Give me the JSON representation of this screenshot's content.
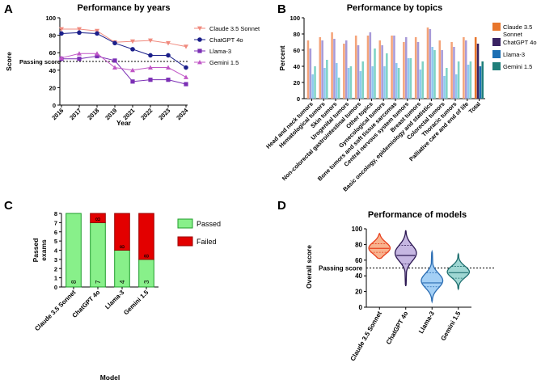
{
  "colors": {
    "claude": "#f08a7e",
    "chatgpt": "#1b1f8a",
    "llama": "#7b2fb5",
    "gemini": "#c056c6",
    "claude_bar": "#f4a47a",
    "chatgpt_bar": "#a89ad8",
    "llama_bar": "#8fc9f0",
    "gemini_bar": "#7fd3c5",
    "total_claude": "#e8762c",
    "total_chatgpt": "#3a2363",
    "total_llama": "#1c6fb3",
    "total_gemini": "#1f7f7a",
    "passed": "#88f08a",
    "passed_border": "#1f9d2b",
    "failed": "#e30000",
    "failed_border": "#9a0000",
    "violin_claude": "#f8b38f",
    "violin_claude_edge": "#e8401d",
    "violin_chatgpt": "#c6b7e2",
    "violin_chatgpt_edge": "#2c1852",
    "violin_llama": "#a3cff5",
    "violin_llama_edge": "#2b6db3",
    "violin_gemini": "#9fd7d3",
    "violin_gemini_edge": "#1f6f6f"
  },
  "panel_labels": [
    "A",
    "B",
    "C",
    "D"
  ],
  "chart_data": [
    {
      "id": "A",
      "type": "line",
      "title": "Performance by years",
      "xlabel": "Year",
      "ylabel": "Score",
      "x": [
        "2016",
        "2017",
        "2018",
        "2019",
        "2021",
        "2022",
        "2023",
        "2024"
      ],
      "ylim": [
        0,
        100
      ],
      "yticks": [
        "0",
        "20",
        "40",
        "60",
        "80",
        "100"
      ],
      "passing_score": 50,
      "passing_label": "Passing score",
      "legend_position": "right",
      "series": [
        {
          "name": "Claude 3.5 Sonnet",
          "marker": "triangle-down",
          "values": [
            87,
            87,
            85,
            72,
            73,
            74,
            71,
            67
          ]
        },
        {
          "name": "ChatGPT 4o",
          "marker": "circle",
          "values": [
            82,
            83,
            82,
            71,
            64,
            57,
            57,
            43
          ]
        },
        {
          "name": "Llama-3",
          "marker": "square",
          "values": [
            53,
            53,
            56,
            51,
            27,
            29,
            29,
            24
          ]
        },
        {
          "name": "Gemini 1.5",
          "marker": "triangle-up",
          "values": [
            54,
            59,
            59,
            43,
            40,
            43,
            43,
            32
          ]
        }
      ]
    },
    {
      "id": "B",
      "type": "bar",
      "title": "Performance by topics",
      "ylabel": "Percent",
      "ylim": [
        0,
        100
      ],
      "yticks": [
        "0",
        "20",
        "40",
        "60",
        "80",
        "100"
      ],
      "legend_position": "right",
      "categories": [
        "Head and neck tumors",
        "Hematological tumors",
        "Skin tumors",
        "Urogenital tumors",
        "Non-colorectal gastrointestinal tumors",
        "Other topics",
        "Gynecological tumors",
        "Bone tumors and soft tissue sarcomas",
        "Central nervous system tumors",
        "Breast tumors",
        "Basic oncology, epidemiology and statistics",
        "Colorectal tumors",
        "Thoracic tumors",
        "Palliative care and end of life",
        "Total"
      ],
      "series": [
        {
          "name": "Claude 3.5 Sonnet",
          "values": [
            72,
            76,
            82,
            68,
            78,
            78,
            72,
            78,
            70,
            76,
            88,
            72,
            70,
            76,
            76
          ]
        },
        {
          "name": "ChatGPT 4o",
          "values": [
            62,
            72,
            74,
            72,
            66,
            82,
            66,
            78,
            76,
            70,
            86,
            60,
            64,
            72,
            68
          ]
        },
        {
          "name": "Llama-3",
          "values": [
            30,
            38,
            44,
            38,
            34,
            40,
            40,
            44,
            50,
            36,
            64,
            28,
            30,
            42,
            40
          ]
        },
        {
          "name": "Gemini 1.5",
          "values": [
            40,
            48,
            26,
            40,
            46,
            62,
            56,
            38,
            50,
            46,
            60,
            38,
            46,
            46,
            46
          ]
        }
      ]
    },
    {
      "id": "C",
      "type": "bar",
      "stacked": true,
      "xlabel": "Model",
      "ylabel_lines": [
        "Passed",
        "exams"
      ],
      "ylim": [
        0,
        8
      ],
      "yticks": [
        "0",
        "1",
        "2",
        "3",
        "4",
        "5",
        "6",
        "7",
        "8"
      ],
      "categories": [
        "Claude 3.5 Sonnet",
        "ChatGPT 4o",
        "Llama-3",
        "Gemini 1.5"
      ],
      "legend_position": "right",
      "series": [
        {
          "name": "Passed",
          "values": [
            8,
            7,
            4,
            3
          ]
        },
        {
          "name": "Failed",
          "values": [
            0,
            1,
            4,
            5
          ]
        }
      ],
      "data_labels": [
        "8",
        "7",
        "4",
        "3"
      ],
      "total_labels": [
        "8",
        "8",
        "8",
        "8"
      ]
    },
    {
      "id": "D",
      "type": "violin",
      "title": "Performance of models",
      "ylabel": "Overall score",
      "ylim": [
        0,
        100
      ],
      "yticks": [
        "0",
        "20",
        "40",
        "60",
        "80",
        "100"
      ],
      "passing_score": 50,
      "passing_label": "Passing score",
      "categories": [
        "Claude 3.5 Sonnet",
        "ChatGPT 4o",
        "Llama-3",
        "Gemini 1.5"
      ],
      "series": [
        {
          "name": "Claude 3.5 Sonnet",
          "min": 62,
          "max": 94,
          "q1": 70,
          "median": 75,
          "q3": 81,
          "mode": 74,
          "spread": 9
        },
        {
          "name": "ChatGPT 4o",
          "min": 27,
          "max": 98,
          "q1": 55,
          "median": 66,
          "q3": 79,
          "mode": 70,
          "spread": 11
        },
        {
          "name": "Llama-3",
          "min": 7,
          "max": 71,
          "q1": 26,
          "median": 31,
          "q3": 44,
          "mode": 33,
          "spread": 10
        },
        {
          "name": "Gemini 1.5",
          "min": 23,
          "max": 68,
          "q1": 37,
          "median": 44,
          "q3": 52,
          "mode": 45,
          "spread": 8
        }
      ]
    }
  ]
}
